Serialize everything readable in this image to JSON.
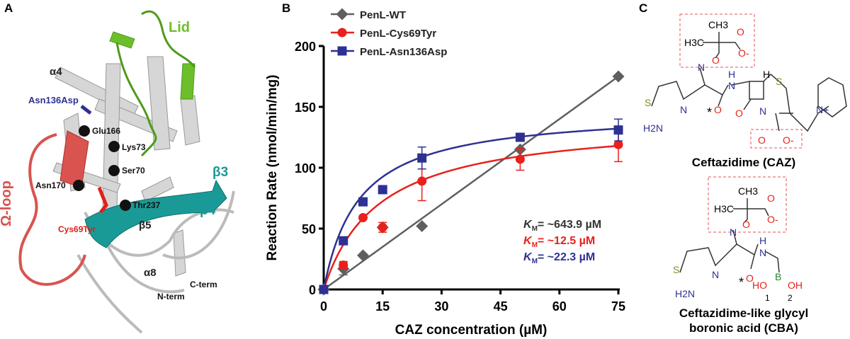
{
  "panel_labels": {
    "a": "A",
    "b": "B",
    "c": "C"
  },
  "panel_a": {
    "labels": {
      "lid": "Lid",
      "alpha4": "α4",
      "asn136asp": "Asn136Asp",
      "glu166": "Glu166",
      "lys73": "Lys73",
      "ser70": "Ser70",
      "asn170": "Asn170",
      "omega_loop": "Ω-loop",
      "cys69tyr": "Cys69Tyr",
      "thr237": "Thr237",
      "beta3": "β3",
      "beta4": "β4",
      "beta5": "β5",
      "alpha8": "α8",
      "c_term": "C-term",
      "n_term": "N-term"
    },
    "colors": {
      "lid": "#6cbf2a",
      "omega_loop": "#d9534f",
      "sheet": "#1a9a96",
      "helix": "#cfcfcf",
      "asn136asp": "#2e3192",
      "cys69tyr": "#e0201b"
    }
  },
  "chart_data": {
    "type": "scatter",
    "xlabel": "CAZ concentration (µM)",
    "ylabel": "Reaction Rate (nmol/min/mg)",
    "xlim": [
      0,
      75
    ],
    "ylim": [
      0,
      200
    ],
    "xticks": [
      0,
      15,
      30,
      45,
      60,
      75
    ],
    "yticks": [
      0,
      50,
      100,
      150,
      200
    ],
    "legend_position": "top-left",
    "series": [
      {
        "name": "PenL-WT",
        "color": "#5f5f5f",
        "marker": "diamond",
        "fit": "linear",
        "x": [
          0,
          5,
          10,
          15,
          25,
          50,
          75
        ],
        "y": [
          0,
          17,
          28,
          51,
          52,
          115,
          175
        ],
        "error": [
          0,
          5,
          0,
          0,
          0,
          0,
          0
        ]
      },
      {
        "name": "PenL-Cys69Tyr",
        "color": "#e8211c",
        "marker": "circle",
        "fit": "michaelis-menten",
        "x": [
          0,
          5,
          10,
          15,
          25,
          50,
          75
        ],
        "y": [
          0,
          20,
          59,
          51,
          89,
          107,
          119
        ],
        "error": [
          0,
          3,
          0,
          4,
          16,
          9,
          14
        ]
      },
      {
        "name": "PenL-Asn136Asp",
        "color": "#2e3192",
        "marker": "square",
        "fit": "michaelis-menten",
        "x": [
          0,
          5,
          10,
          15,
          25,
          50,
          75
        ],
        "y": [
          0,
          40,
          72,
          82,
          108,
          125,
          131
        ],
        "error": [
          0,
          0,
          0,
          0,
          9,
          0,
          9
        ]
      }
    ],
    "annotations": [
      {
        "prefix": "K",
        "sub": "M",
        "text": "= ~643.9 µM",
        "color": "#333333"
      },
      {
        "prefix": "K",
        "sub": "M",
        "text": "=   ~12.5 µM",
        "color": "#e8211c"
      },
      {
        "prefix": "K",
        "sub": "M",
        "text": "=   ~22.3 µM",
        "color": "#2e3192"
      }
    ]
  },
  "panel_c": {
    "caz_title": "Ceftazidime (CAZ)",
    "cba_title_line1": "Ceftazidime-like glycyl",
    "cba_title_line2": "boronic acid (CBA)",
    "atoms": {
      "ch3": "CH3",
      "h3c": "H3C",
      "o": "O",
      "o_minus": "O-",
      "n": "N",
      "h": "H",
      "s": "S",
      "h2n": "H2N",
      "n_plus": "N+",
      "b": "B",
      "ho": "HO",
      "oh": "OH",
      "star": "*",
      "one": "1",
      "two": "2"
    }
  }
}
